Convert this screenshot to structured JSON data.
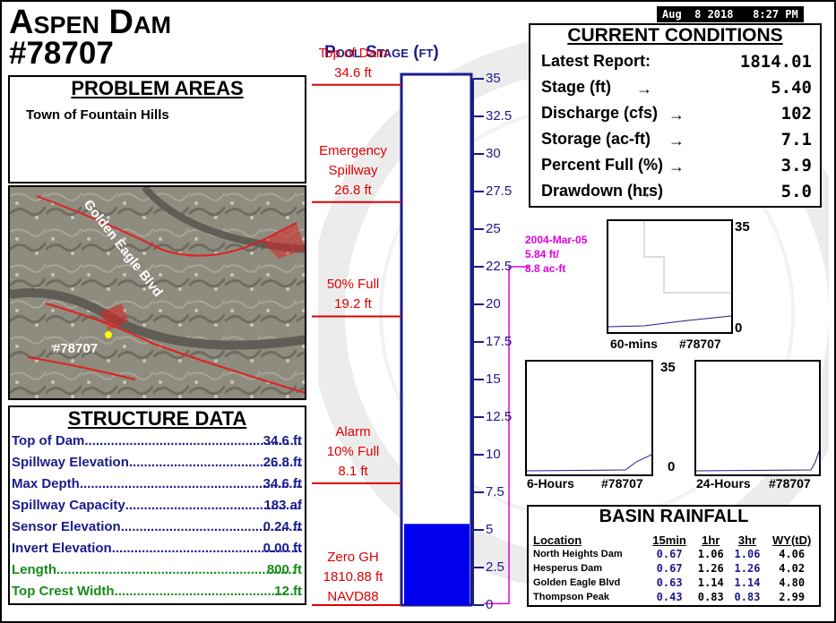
{
  "header": {
    "dam_name": "Aspen Dam",
    "dam_id": "#78707",
    "datetime": "Aug  8 2018   8:27 PM"
  },
  "problem_areas": {
    "title": "PROBLEM AREAS",
    "text": "Town of Fountain Hills"
  },
  "map": {
    "road_label": "Golden Eagle Blvd",
    "site_label": "#78707"
  },
  "structure_data": {
    "title": "STRUCTURE DATA",
    "rows": [
      {
        "label": "Top of Dam",
        "value": "34.6 ft",
        "color": "#1b1b8c"
      },
      {
        "label": "Spillway Elevation",
        "value": "26.8 ft",
        "color": "#1b1b8c"
      },
      {
        "label": "Max Depth",
        "value": "34.6 ft",
        "color": "#1b1b8c"
      },
      {
        "label": "Spillway Capacity",
        "value": "183 af",
        "color": "#1b1b8c"
      },
      {
        "label": "Sensor Elevation",
        "value": "0.24 ft",
        "color": "#1b1b8c"
      },
      {
        "label": "Invert Elevation",
        "value": "0.00 ft",
        "color": "#1b1b8c"
      },
      {
        "label": "Length",
        "value": "800 ft",
        "color": "#1a8a1a"
      },
      {
        "label": "Top Crest Width",
        "value": "12 ft",
        "color": "#1a8a1a"
      }
    ]
  },
  "pool_stage": {
    "title": "Pool Stage (ft)",
    "axis_max": 35,
    "current_stage": 5.4,
    "ticks": [
      "0",
      "2.5",
      "5",
      "7.5",
      "10",
      "12.5",
      "15",
      "17.5",
      "20",
      "22.5",
      "25",
      "27.5",
      "30",
      "32.5",
      "35"
    ],
    "markers": [
      {
        "line1": "Top of Dam",
        "line2": "34.6 ft",
        "line3": "",
        "value": 34.6
      },
      {
        "line1": "Emergency",
        "line2": "Spillway",
        "line3": "26.8 ft",
        "value": 26.8
      },
      {
        "line1": "50% Full",
        "line2": "19.2 ft",
        "line3": "",
        "value": 19.2
      },
      {
        "line1": "Alarm",
        "line2": "10% Full",
        "line3": "8.1 ft",
        "value": 8.1
      },
      {
        "line1": "Zero GH",
        "line2": "1810.88 ft",
        "line3": "NAVD88",
        "value": 0
      }
    ],
    "historic": {
      "date": "2004-Mar-05",
      "stage": "5.84 ft/",
      "storage": "8.8 ac-ft",
      "value": 22.5
    }
  },
  "current_conditions": {
    "title": "CURRENT CONDITIONS",
    "rows": [
      {
        "label": "Latest Report:",
        "value": "1814.01",
        "arrow": false
      },
      {
        "label": "Stage (ft)",
        "value": "5.40",
        "arrow": true
      },
      {
        "label": "Discharge (cfs)",
        "value": "102",
        "arrow": true
      },
      {
        "label": "Storage (ac-ft)",
        "value": "7.1",
        "arrow": true
      },
      {
        "label": "Percent Full (%)",
        "value": "3.9",
        "arrow": true
      },
      {
        "label": "Drawdown (hrs)",
        "value": "5.0",
        "arrow": true
      }
    ]
  },
  "mini_charts": {
    "c60": {
      "period": "60-mins",
      "id": "#78707",
      "ymax": "35",
      "ymin": "0"
    },
    "c6h": {
      "period": "6-Hours",
      "id": "#78707",
      "ymax": "35",
      "ymin": "0"
    },
    "c24h": {
      "period": "24-Hours",
      "id": "#78707"
    }
  },
  "basin_rainfall": {
    "title": "BASIN RAINFALL",
    "headers": [
      "Location",
      "15min",
      "1hr",
      "3hr",
      "WY(tD)"
    ],
    "rows": [
      {
        "location": "North Heights Dam",
        "m15": "0.67",
        "h1": "1.06",
        "h3": "1.06",
        "wy": "4.06"
      },
      {
        "location": "Hesperus Dam",
        "m15": "0.67",
        "h1": "1.26",
        "h3": "1.26",
        "wy": "4.02"
      },
      {
        "location": "Golden Eagle Blvd",
        "m15": "0.63",
        "h1": "1.14",
        "h3": "1.14",
        "wy": "4.80"
      },
      {
        "location": "Thompson Peak",
        "m15": "0.43",
        "h1": "0.83",
        "h3": "0.83",
        "wy": "2.99"
      }
    ]
  },
  "colors": {
    "stage_fill": "#0000ee",
    "accent_red": "#e00000",
    "navy": "#1b1b8c",
    "magenta": "#e000e0"
  }
}
